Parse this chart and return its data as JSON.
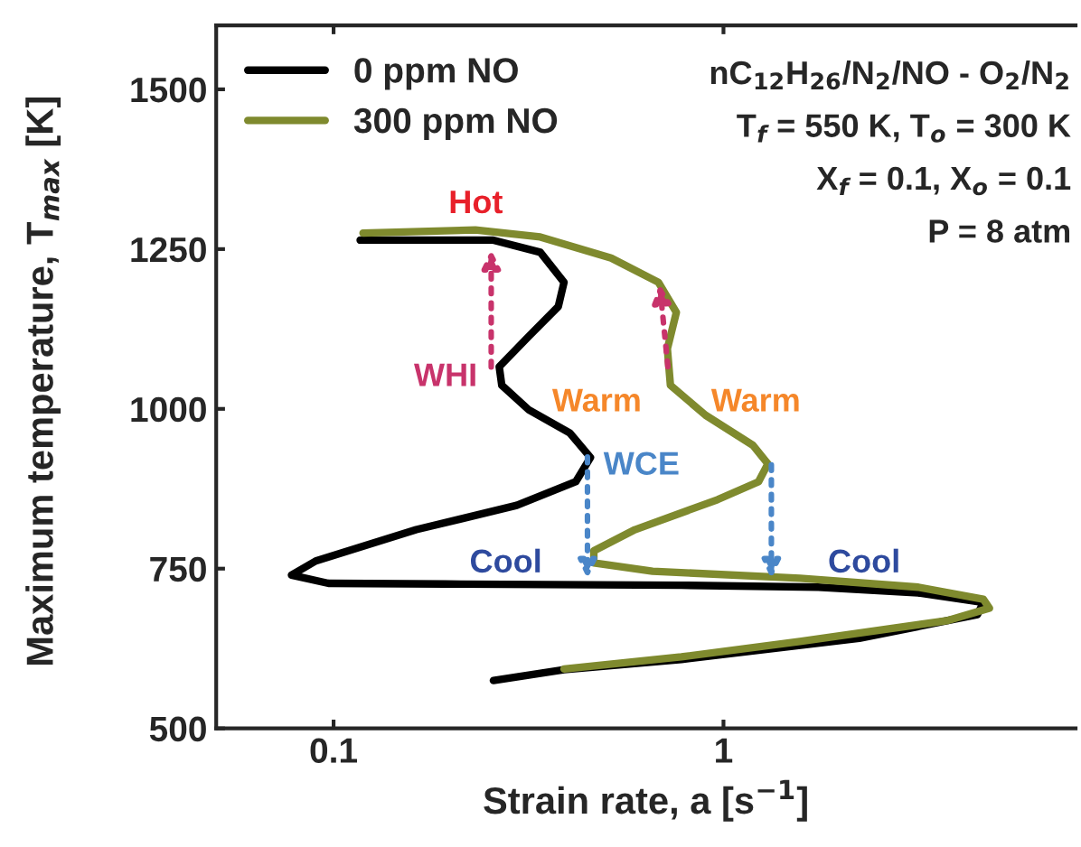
{
  "chart_data": {
    "type": "line",
    "xlabel": "Strain rate, a [s$^{−1}$]",
    "ylabel": "Maximum temperature, T$_{max}$ [K]",
    "log": "x",
    "xlim": [
      0.05,
      8
    ],
    "xticks": [
      0.1,
      1
    ],
    "ylim": [
      500,
      1600
    ],
    "yticks": [
      500,
      750,
      1000,
      1250,
      1500
    ],
    "grid": false,
    "legend": "top left",
    "marker": "none",
    "line_style": "solid",
    "series": [
      {
        "name": "0 ppm NO",
        "color": "#000000",
        "x": [
          0.117,
          0.257,
          0.339,
          0.39,
          0.377,
          0.316,
          0.266,
          0.27,
          0.316,
          0.404,
          0.456,
          0.418,
          0.295,
          0.163,
          0.09,
          0.078,
          0.097,
          0.194,
          0.78,
          1.75,
          3.16,
          4.64,
          4.48,
          2.23,
          0.78,
          0.39,
          0.257
        ],
        "values": [
          1264,
          1264,
          1245,
          1198,
          1160,
          1113,
          1066,
          1037,
          999,
          962,
          924,
          886,
          849,
          811,
          762,
          740,
          727,
          726,
          724,
          721,
          712,
          697,
          678,
          641,
          608,
          592,
          575
        ]
      },
      {
        "name": "300 ppm NO",
        "color": "#7f8a2e",
        "x": [
          0.119,
          0.231,
          0.339,
          0.515,
          0.681,
          0.757,
          0.718,
          0.731,
          0.9,
          1.19,
          1.3,
          1.23,
          0.966,
          0.593,
          0.465,
          0.465,
          0.658,
          1.57,
          3.16,
          4.64,
          4.81,
          3.77,
          1.57,
          0.78,
          0.39
        ],
        "values": [
          1275,
          1280,
          1269,
          1236,
          1198,
          1151,
          1094,
          1037,
          990,
          943,
          914,
          886,
          858,
          811,
          778,
          759,
          746,
          735,
          721,
          702,
          688,
          669,
          636,
          612,
          593
        ]
      }
    ],
    "annotations": [
      "Hot",
      "WHI",
      {
        "text": "Warm",
        "x": 0.72,
        "y": 1066
      },
      "Warm",
      "WCE",
      "Cool",
      "Cool",
      "nC$_{12}$H$_{26}$/N$_{2}$/NO - O$_{2}$/N$_{2}$",
      "T$_{f}$ = 550 K, T$_{o}$ = 300 K",
      "X$_{f}$ = 0.1, X$_{o}$ = 0.1",
      "P = 8 atm"
    ]
  }
}
